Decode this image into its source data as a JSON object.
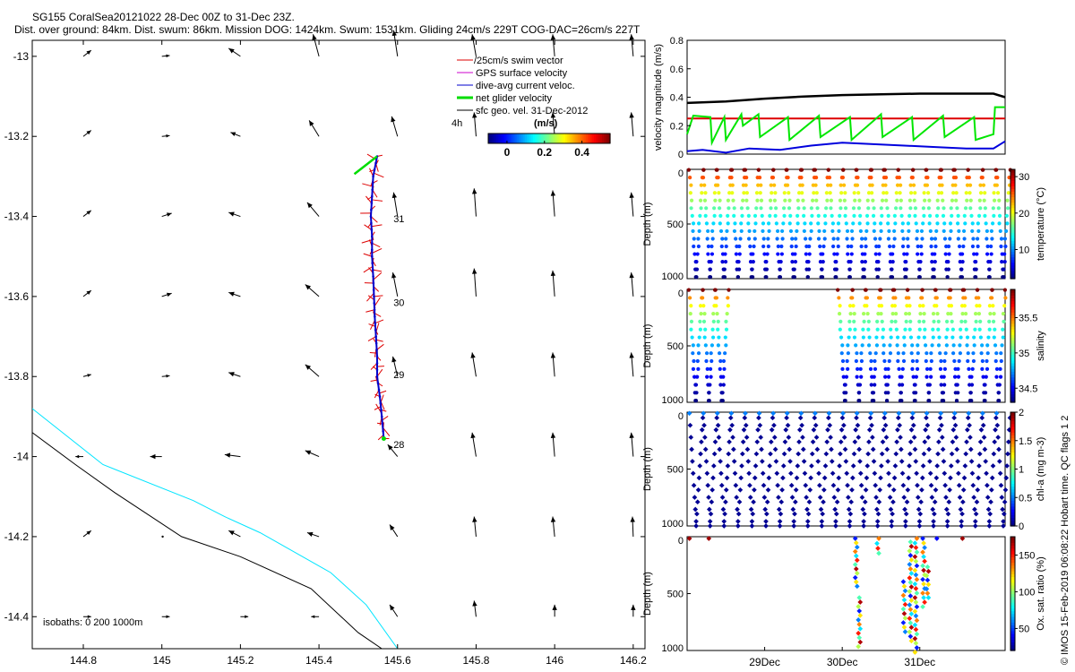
{
  "header": {
    "title": "SG155 CoralSea20121022 28-Dec 00Z to 31-Dec 23Z.",
    "subtitle": "Dist. over ground: 84km. Dist. swum: 86km. Mission DOG: 1424km. Swum: 1531km. Gliding 24cm/s 229T COG-DAC=26cm/s 227T"
  },
  "footer": {
    "credit": "© IMOS 15-Feb-2019 06:08:22 Hobart time. QC flags 1  2"
  },
  "colors": {
    "swim_vector": "#dd0000",
    "gps_velocity": "#cc00cc",
    "dac": "#0000cc",
    "net_velocity": "#00dd00",
    "geo_velocity": "#000000",
    "isobath_0": "#00e5ff",
    "isobath_200": "#000000"
  },
  "chart_data": [
    {
      "type": "map",
      "xlim": [
        144.67,
        146.23
      ],
      "ylim": [
        -14.48,
        -12.96
      ],
      "xticks": [
        "144.8",
        "145",
        "145.2",
        "145.4",
        "145.6",
        "145.8",
        "146",
        "146.2"
      ],
      "yticks": [
        "-13",
        "-13.2",
        "-13.4",
        "-13.6",
        "-13.8",
        "-14",
        "-14.2",
        "-14.4"
      ],
      "legend": {
        "swim": "/25cm/s swim vector",
        "gps": "GPS surface velocity",
        "dac": "dive-avg current veloc.",
        "net": "net glider velocity",
        "geo": "sfc geo. vel. 31-Dec-2012",
        "interval": "4h"
      },
      "colorbar": {
        "label": "(m/s)",
        "ticks": [
          "0",
          "0.2",
          "0.4"
        ],
        "range": [
          -0.1,
          0.55
        ]
      },
      "isobaths_label": "isobaths: 0   200  1000m",
      "day_labels": [
        {
          "text": "28",
          "lon": 145.585,
          "lat": -13.97
        },
        {
          "text": "29",
          "lon": 145.585,
          "lat": -13.795
        },
        {
          "text": "30",
          "lon": 145.585,
          "lat": -13.615
        },
        {
          "text": "31",
          "lon": 145.585,
          "lat": -13.405
        }
      ],
      "track": [
        {
          "lon": 145.565,
          "lat": -13.955
        },
        {
          "lon": 145.56,
          "lat": -13.9
        },
        {
          "lon": 145.555,
          "lat": -13.85
        },
        {
          "lon": 145.548,
          "lat": -13.8
        },
        {
          "lon": 145.548,
          "lat": -13.75
        },
        {
          "lon": 145.545,
          "lat": -13.7
        },
        {
          "lon": 145.542,
          "lat": -13.65
        },
        {
          "lon": 145.54,
          "lat": -13.6
        },
        {
          "lon": 145.538,
          "lat": -13.55
        },
        {
          "lon": 145.535,
          "lat": -13.5
        },
        {
          "lon": 145.535,
          "lat": -13.45
        },
        {
          "lon": 145.532,
          "lat": -13.4
        },
        {
          "lon": 145.535,
          "lat": -13.35
        },
        {
          "lon": 145.538,
          "lat": -13.3
        },
        {
          "lon": 145.548,
          "lat": -13.25
        }
      ],
      "net_vector": {
        "lon": 145.515,
        "lat": -13.29,
        "u": -0.058,
        "v": -0.044
      },
      "isobath_0m": [
        {
          "lon": 144.67,
          "lat": -13.88
        },
        {
          "lon": 144.85,
          "lat": -14.02
        },
        {
          "lon": 145.08,
          "lat": -14.11
        },
        {
          "lon": 145.16,
          "lat": -14.15
        },
        {
          "lon": 145.25,
          "lat": -14.19
        },
        {
          "lon": 145.43,
          "lat": -14.29
        },
        {
          "lon": 145.52,
          "lat": -14.37
        },
        {
          "lon": 145.6,
          "lat": -14.48
        }
      ],
      "isobath_200m": [
        {
          "lon": 144.67,
          "lat": -13.94
        },
        {
          "lon": 144.78,
          "lat": -14.02
        },
        {
          "lon": 144.88,
          "lat": -14.09
        },
        {
          "lon": 145.05,
          "lat": -14.2
        },
        {
          "lon": 145.2,
          "lat": -14.25
        },
        {
          "lon": 145.38,
          "lat": -14.33
        },
        {
          "lon": 145.5,
          "lat": -14.44
        },
        {
          "lon": 145.56,
          "lat": -14.48
        }
      ],
      "geo_grid": {
        "lons": [
          144.8,
          145.0,
          145.2,
          145.4,
          145.6,
          145.8,
          146.0,
          146.2
        ],
        "lats": [
          -13.0,
          -13.2,
          -13.4,
          -13.6,
          -13.8,
          -14.0,
          -14.2,
          -14.4
        ],
        "dx": [
          [
            0.02,
            0.02,
            -0.03,
            -0.015,
            -0.01,
            -0.01,
            -0.005,
            -0.005
          ],
          [
            0.02,
            0.02,
            -0.025,
            -0.025,
            -0.015,
            -0.005,
            -0.005,
            -0.005
          ],
          [
            0.02,
            0.025,
            -0.03,
            -0.03,
            -0.01,
            -0.005,
            -0.005,
            -0.005
          ],
          [
            0.02,
            0.025,
            -0.03,
            -0.035,
            -0.012,
            -0.005,
            -0.005,
            -0.005
          ],
          [
            0.02,
            0.02,
            -0.03,
            -0.035,
            -0.012,
            -0.01,
            -0.005,
            -0.005
          ],
          [
            -0.02,
            -0.03,
            -0.04,
            -0.035,
            -0.025,
            -0.01,
            -0.005,
            -0.005
          ],
          [
            0.02,
            0.002,
            -0.03,
            -0.03,
            -0.02,
            -0.005,
            -0.005,
            -0.002
          ],
          [
            0.02,
            0.02,
            0.02,
            -0.02,
            -0.02,
            -0.005,
            0.0,
            0.0
          ]
        ],
        "dy": [
          [
            0.015,
            0.002,
            0.02,
            0.055,
            0.065,
            0.055,
            0.055,
            0.055
          ],
          [
            0.015,
            0.002,
            0.01,
            0.04,
            0.05,
            0.06,
            0.06,
            0.06
          ],
          [
            0.015,
            0.008,
            0.01,
            0.035,
            0.06,
            0.07,
            0.065,
            0.06
          ],
          [
            0.015,
            0.008,
            0.01,
            0.03,
            0.06,
            0.07,
            0.065,
            0.06
          ],
          [
            0.005,
            0.002,
            0.01,
            0.03,
            0.05,
            0.06,
            0.06,
            0.06
          ],
          [
            0.0,
            0.0,
            0.005,
            0.015,
            0.03,
            0.06,
            0.06,
            0.06
          ],
          [
            0.015,
            0.0,
            0.015,
            0.01,
            0.03,
            0.05,
            0.05,
            0.05
          ],
          [
            0.0,
            0.0,
            0.0,
            0.0,
            0.03,
            0.04,
            0.03,
            0.03
          ]
        ]
      }
    },
    {
      "type": "line",
      "ylabel": "velocity magnitude (m/s)",
      "ylim": [
        0,
        0.8
      ],
      "yticks": [
        "0",
        "0.2",
        "0.4",
        "0.6",
        "0.8"
      ],
      "xlim": [
        0,
        4.1
      ],
      "series": [
        {
          "color": "#000000",
          "x": [
            0,
            0.5,
            1,
            1.5,
            2,
            2.5,
            3,
            3.5,
            3.95,
            4.1
          ],
          "values": [
            0.36,
            0.37,
            0.39,
            0.405,
            0.415,
            0.42,
            0.425,
            0.425,
            0.425,
            0.4
          ]
        },
        {
          "color": "#dd0000",
          "x": [
            0,
            4.1
          ],
          "values": [
            0.25,
            0.25
          ]
        },
        {
          "color": "#0000dd",
          "x": [
            0,
            0.2,
            0.5,
            0.8,
            1.2,
            1.6,
            2.0,
            2.4,
            2.8,
            3.2,
            3.6,
            3.95,
            4.1
          ],
          "values": [
            0.02,
            0.03,
            0.01,
            0.04,
            0.03,
            0.06,
            0.08,
            0.07,
            0.06,
            0.05,
            0.04,
            0.04,
            0.09
          ]
        },
        {
          "color": "#00e600",
          "x": [
            0,
            0.08,
            0.3,
            0.32,
            0.48,
            0.5,
            0.7,
            0.72,
            0.92,
            0.94,
            1.3,
            1.32,
            1.7,
            1.72,
            2.1,
            2.12,
            2.5,
            2.52,
            2.9,
            2.92,
            3.3,
            3.32,
            3.7,
            3.72,
            3.95,
            3.97,
            4.1
          ],
          "values": [
            0.14,
            0.27,
            0.26,
            0.08,
            0.26,
            0.1,
            0.28,
            0.2,
            0.28,
            0.12,
            0.26,
            0.1,
            0.27,
            0.12,
            0.26,
            0.1,
            0.28,
            0.12,
            0.26,
            0.1,
            0.27,
            0.12,
            0.26,
            0.1,
            0.14,
            0.33,
            0.33
          ]
        }
      ]
    },
    {
      "type": "scatter",
      "ylabel": "Depth (m)",
      "cblabel": "temperature (°C)",
      "ylim": [
        1000,
        0
      ],
      "yticks": [
        "0",
        "500",
        "1000"
      ],
      "cbticks": [
        "10",
        "20",
        "30"
      ],
      "crange": [
        2,
        32
      ],
      "xlim": [
        0,
        4.1
      ],
      "profiles": {
        "start": 0.03,
        "step": 0.18,
        "count": 23
      }
    },
    {
      "type": "scatter",
      "ylabel": "Depth (m)",
      "cblabel": "salinity",
      "ylim": [
        1000,
        0
      ],
      "yticks": [
        "0",
        "500",
        "1000"
      ],
      "cbticks": [
        "34.5",
        "35",
        "35.5"
      ],
      "crange": [
        34.3,
        35.9
      ],
      "xlim": [
        0,
        4.1
      ],
      "profile_groups": [
        {
          "start": 0.03,
          "step": 0.17,
          "count": 3
        },
        {
          "start": 1.95,
          "step": 0.18,
          "count": 12
        }
      ]
    },
    {
      "type": "scatter",
      "ylabel": "Depth (m)",
      "cblabel": "chl-a (mg m-3)",
      "ylim": [
        1000,
        0
      ],
      "yticks": [
        "0",
        "500",
        "1000"
      ],
      "cbticks": [
        "0",
        "0.5",
        "1",
        "1.5",
        "2"
      ],
      "crange": [
        0,
        2
      ],
      "xlim": [
        0,
        4.1
      ],
      "profiles": {
        "start": 0.03,
        "step": 0.18,
        "count": 23
      }
    },
    {
      "type": "scatter",
      "ylabel": "Depth (m)",
      "cblabel": "Ox. sat. ratio (%)",
      "ylim": [
        1000,
        0
      ],
      "yticks": [
        "0",
        "500",
        "1000"
      ],
      "cbticks": [
        "50",
        "100",
        "150"
      ],
      "crange": [
        20,
        175
      ],
      "xlim": [
        0,
        4.1
      ],
      "xticks": [
        {
          "label": "29Dec",
          "x": 1
        },
        {
          "label": "30Dec",
          "x": 2
        },
        {
          "label": "31Dec",
          "x": 3
        }
      ],
      "points": [
        {
          "x": 0.03,
          "y": 0,
          "c": 170
        },
        {
          "x": 0.28,
          "y": 0,
          "c": 170
        },
        {
          "x": 3.22,
          "y": 0,
          "c": 40
        },
        {
          "x": 3.55,
          "y": 0,
          "c": 170
        }
      ],
      "columns": [
        {
          "x": 2.18,
          "top": 0,
          "bottom": 420
        },
        {
          "x": 2.22,
          "top": 520,
          "bottom": 950
        },
        {
          "x": 2.46,
          "top": 0,
          "bottom": 130
        },
        {
          "x": 2.8,
          "top": 380,
          "bottom": 820
        },
        {
          "x": 2.88,
          "top": 30,
          "bottom": 900
        },
        {
          "x": 2.95,
          "top": 0,
          "bottom": 1000
        },
        {
          "x": 3.05,
          "top": 0,
          "bottom": 600
        },
        {
          "x": 3.1,
          "top": 250,
          "bottom": 520
        }
      ]
    }
  ]
}
